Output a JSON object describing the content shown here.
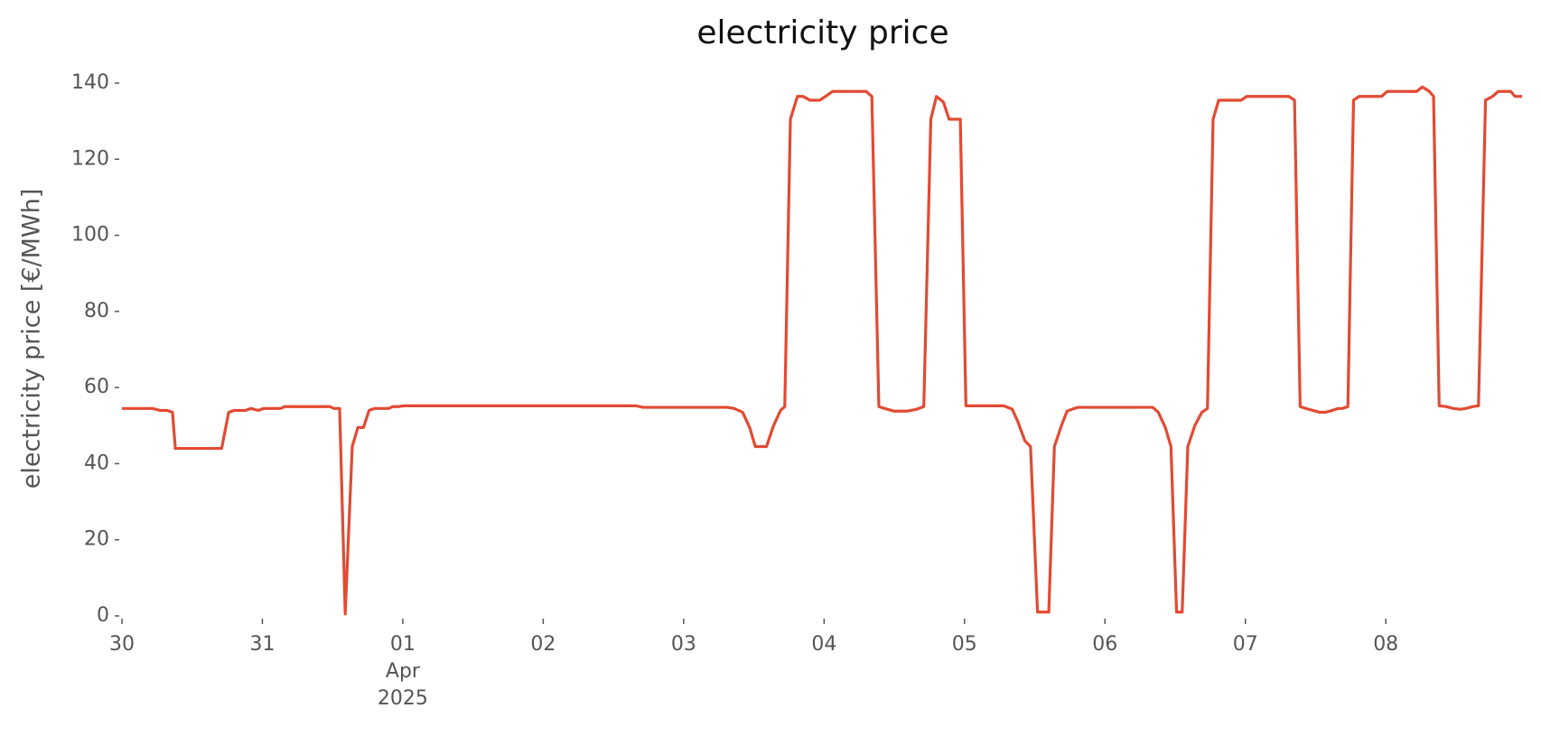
{
  "chart_data": {
    "type": "line",
    "title": "electricity price",
    "ylabel": "electricity price [€/MWh]",
    "x": [
      0,
      0.22,
      0.27,
      0.32,
      0.36,
      0.38,
      0.71,
      0.76,
      0.8,
      0.88,
      0.92,
      0.97,
      1.01,
      1.13,
      1.16,
      1.48,
      1.51,
      1.55,
      1.59,
      1.64,
      1.68,
      1.72,
      1.76,
      1.8,
      1.9,
      1.93,
      1.97,
      2.01,
      3.66,
      3.71,
      4.31,
      4.36,
      4.42,
      4.47,
      4.51,
      4.59,
      4.64,
      4.69,
      4.72,
      4.76,
      4.81,
      4.85,
      4.9,
      4.97,
      5.01,
      5.06,
      5.3,
      5.34,
      5.39,
      5.43,
      5.5,
      5.59,
      5.66,
      5.71,
      5.76,
      5.8,
      5.85,
      5.89,
      5.97,
      6.01,
      6.28,
      6.34,
      6.38,
      6.43,
      6.47,
      6.52,
      6.6,
      6.64,
      6.69,
      6.73,
      6.78,
      6.81,
      7.34,
      7.38,
      7.43,
      7.47,
      7.51,
      7.55,
      7.59,
      7.64,
      7.69,
      7.73,
      7.77,
      7.81,
      7.97,
      8.01,
      8.31,
      8.35,
      8.39,
      8.43,
      8.48,
      8.53,
      8.57,
      8.62,
      8.66,
      8.69,
      8.73,
      8.77,
      8.81,
      8.97,
      9.01,
      9.22,
      9.26,
      9.31,
      9.34,
      9.38,
      9.43,
      9.48,
      9.53,
      9.57,
      9.62,
      9.66,
      9.71,
      9.76,
      9.8,
      9.89,
      9.92,
      9.97
    ],
    "series": [
      {
        "name": "electricity price",
        "color": "#e24a33",
        "values": [
          54.5,
          54.5,
          54,
          54,
          53.5,
          44,
          44,
          53.5,
          54,
          54,
          54.5,
          54,
          54.5,
          54.5,
          55,
          55,
          54.5,
          54.5,
          0.5,
          44.5,
          49.5,
          49.5,
          54,
          54.5,
          54.5,
          55,
          55,
          55.2,
          55.2,
          54.8,
          54.8,
          54.5,
          53.5,
          49.5,
          44.5,
          44.5,
          50,
          54,
          55,
          130.5,
          136.5,
          136.5,
          135.5,
          135.5,
          136.5,
          137.8,
          137.8,
          136.5,
          55,
          54.5,
          53.8,
          53.8,
          54.3,
          55,
          130.5,
          136.5,
          135,
          130.5,
          130.5,
          55.2,
          55.2,
          54.3,
          51,
          46,
          44.5,
          1,
          1,
          44.5,
          50,
          53.8,
          54.5,
          54.8,
          54.8,
          53.5,
          49.5,
          44.5,
          1,
          1,
          44.5,
          50,
          53.5,
          54.5,
          130.5,
          135.5,
          135.5,
          136.5,
          136.5,
          135.5,
          55,
          54.5,
          54,
          53.5,
          53.5,
          54,
          54.5,
          54.5,
          55,
          135.5,
          136.5,
          136.5,
          137.8,
          137.8,
          139,
          137.8,
          136.5,
          55.2,
          55,
          54.5,
          54.3,
          54.5,
          55,
          55.2,
          135.5,
          136.5,
          137.8,
          137.8,
          136.5,
          136.5
        ]
      }
    ],
    "xlim": [
      0,
      9.97
    ],
    "xticks": [
      {
        "value": 0,
        "label": "30"
      },
      {
        "value": 1,
        "label": "31"
      },
      {
        "value": 2,
        "label": "01\nApr\n2025"
      },
      {
        "value": 3,
        "label": "02"
      },
      {
        "value": 4,
        "label": "03"
      },
      {
        "value": 5,
        "label": "04"
      },
      {
        "value": 6,
        "label": "05"
      },
      {
        "value": 7,
        "label": "06"
      },
      {
        "value": 8,
        "label": "07"
      },
      {
        "value": 9,
        "label": "08"
      }
    ],
    "ylim": [
      0,
      140
    ],
    "yticks": [
      0,
      20,
      40,
      60,
      80,
      100,
      120,
      140
    ],
    "grid": false
  }
}
